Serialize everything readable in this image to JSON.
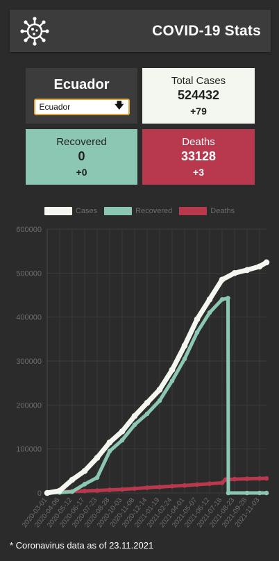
{
  "header": {
    "title": "COVID-19 Stats",
    "icon": "virus-icon"
  },
  "country": {
    "name": "Ecuador",
    "selected": "Ecuador"
  },
  "total": {
    "label": "Total Cases",
    "value": "524432",
    "delta": "+79"
  },
  "recovered": {
    "label": "Recovered",
    "value": "0",
    "delta": "+0"
  },
  "deaths": {
    "label": "Deaths",
    "value": "33128",
    "delta": "+3"
  },
  "colors": {
    "cases": "#f4f7ef",
    "recovered": "#8bc7b2",
    "deaths": "#b8384e"
  },
  "footer": {
    "note": "* Coronavirus data as of 23.11.2021"
  },
  "chart_data": {
    "type": "line",
    "title": "",
    "xlabel": "",
    "ylabel": "",
    "legend_position": "top",
    "grid": true,
    "ylim": [
      0,
      600000
    ],
    "yticks": [
      0,
      100000,
      200000,
      300000,
      400000,
      500000,
      600000
    ],
    "x_tick_labels": [
      "2020-03-01",
      "2020-04-06",
      "2020-05-12",
      "2020-06-17",
      "2020-07-23",
      "2020-08-28",
      "2020-10-03",
      "2020-11-08",
      "2020-12-14",
      "2021-01-19",
      "2021-02-24",
      "2021-04-01",
      "2021-05-07",
      "2021-06-12",
      "2021-07-18",
      "2021-08-23",
      "2021-09-28",
      "2021-11-03"
    ],
    "series": [
      {
        "name": "Cases",
        "color": "#f4f7ef",
        "x": [
          "2020-03-01",
          "2020-04-06",
          "2020-05-12",
          "2020-06-17",
          "2020-07-23",
          "2020-08-28",
          "2020-10-03",
          "2020-11-08",
          "2020-12-14",
          "2021-01-19",
          "2021-02-24",
          "2021-04-01",
          "2021-05-07",
          "2021-06-12",
          "2021-07-18",
          "2021-08-23",
          "2021-09-28",
          "2021-11-03",
          "2021-11-23"
        ],
        "values": [
          0,
          5000,
          30000,
          50000,
          80000,
          115000,
          140000,
          175000,
          205000,
          235000,
          280000,
          335000,
          395000,
          440000,
          485000,
          500000,
          507000,
          515000,
          524432
        ]
      },
      {
        "name": "Recovered",
        "color": "#8bc7b2",
        "x": [
          "2020-03-01",
          "2020-04-06",
          "2020-05-12",
          "2020-06-17",
          "2020-07-23",
          "2020-08-28",
          "2020-10-03",
          "2020-11-08",
          "2020-12-14",
          "2021-01-19",
          "2021-02-24",
          "2021-04-01",
          "2021-05-07",
          "2021-06-12",
          "2021-07-18",
          "2021-08-04",
          "2021-08-05",
          "2021-09-28",
          "2021-11-03",
          "2021-11-23"
        ],
        "values": [
          0,
          1000,
          3000,
          20000,
          35000,
          95000,
          120000,
          155000,
          180000,
          210000,
          255000,
          305000,
          365000,
          410000,
          440000,
          443000,
          0,
          0,
          0,
          0
        ]
      },
      {
        "name": "Deaths",
        "color": "#b8384e",
        "x": [
          "2020-03-01",
          "2020-04-06",
          "2020-05-12",
          "2020-06-17",
          "2020-07-23",
          "2020-08-28",
          "2020-10-03",
          "2020-11-08",
          "2020-12-14",
          "2021-01-19",
          "2021-02-24",
          "2021-04-01",
          "2021-05-07",
          "2021-06-12",
          "2021-07-18",
          "2021-07-28",
          "2021-08-23",
          "2021-09-28",
          "2021-11-03",
          "2021-11-23"
        ],
        "values": [
          0,
          3000,
          3500,
          4500,
          5500,
          7000,
          8000,
          10000,
          12000,
          13500,
          15500,
          17000,
          19000,
          21000,
          23000,
          30500,
          31500,
          32200,
          32900,
          33128
        ]
      }
    ]
  }
}
